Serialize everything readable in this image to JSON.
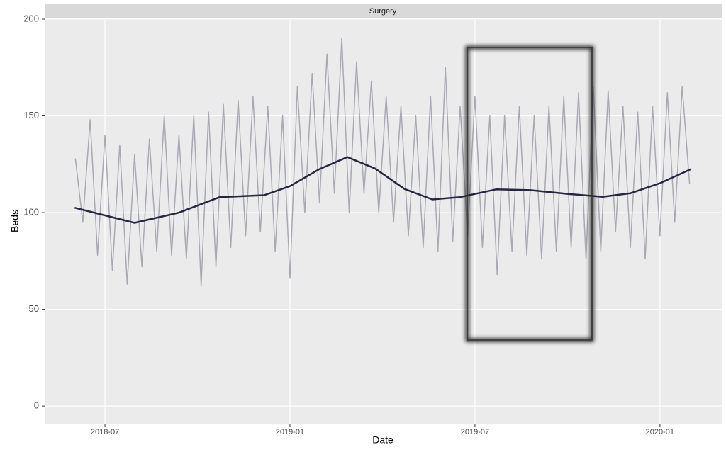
{
  "chart_data": {
    "type": "line",
    "panel_title": "Surgery",
    "x_label": "Date",
    "y_label": "Beds",
    "x": [
      2018.42,
      2018.44,
      2018.46,
      2018.48,
      2018.5,
      2018.52,
      2018.54,
      2018.56,
      2018.58,
      2018.6,
      2018.62,
      2018.64,
      2018.66,
      2018.68,
      2018.7,
      2018.72,
      2018.74,
      2018.76,
      2018.78,
      2018.8,
      2018.82,
      2018.84,
      2018.86,
      2018.88,
      2018.9,
      2018.92,
      2018.94,
      2018.96,
      2018.98,
      2019.0,
      2019.02,
      2019.04,
      2019.06,
      2019.08,
      2019.1,
      2019.12,
      2019.14,
      2019.16,
      2019.18,
      2019.2,
      2019.22,
      2019.24,
      2019.26,
      2019.28,
      2019.3,
      2019.32,
      2019.34,
      2019.36,
      2019.38,
      2019.4,
      2019.42,
      2019.44,
      2019.46,
      2019.48,
      2019.5,
      2019.52,
      2019.54,
      2019.56,
      2019.58,
      2019.6,
      2019.62,
      2019.64,
      2019.66,
      2019.68,
      2019.7,
      2019.72,
      2019.74,
      2019.76,
      2019.78,
      2019.8,
      2019.82,
      2019.84,
      2019.86,
      2019.88,
      2019.9,
      2019.92,
      2019.94,
      2019.96,
      2019.98,
      2020.0,
      2020.02,
      2020.04,
      2020.06,
      2020.08
    ],
    "series": [
      {
        "color": "#aaa8b4",
        "width": 1.5,
        "values": [
          128,
          95,
          148,
          78,
          140,
          70,
          135,
          63,
          130,
          72,
          138,
          80,
          150,
          78,
          140,
          76,
          150,
          62,
          152,
          72,
          156,
          82,
          158,
          88,
          160,
          90,
          155,
          80,
          150,
          66,
          165,
          100,
          172,
          105,
          182,
          110,
          190,
          100,
          178,
          110,
          168,
          100,
          160,
          95,
          155,
          88,
          150,
          82,
          160,
          80,
          175,
          85,
          155,
          88,
          160,
          82,
          150,
          68,
          150,
          80,
          155,
          78,
          150,
          76,
          155,
          80,
          160,
          82,
          162,
          76,
          165,
          80,
          163,
          90,
          155,
          82,
          152,
          76,
          155,
          88,
          162,
          95,
          165,
          115
        ]
      },
      {
        "color": "#262640",
        "width": 2.5,
        "x": [
          2018.418,
          2018.58,
          2018.7,
          2018.81,
          2018.93,
          2019.0,
          2019.08,
          2019.155,
          2019.23,
          2019.31,
          2019.385,
          2019.46,
          2019.557,
          2019.65,
          2019.75,
          2019.845,
          2019.92,
          2020.0,
          2020.084
        ],
        "values": [
          102.5,
          94.7,
          100,
          108,
          109,
          113.7,
          122.5,
          128.7,
          122.8,
          112.2,
          106.8,
          108,
          112,
          111.6,
          109.7,
          108.2,
          110,
          115.2,
          122.5
        ]
      }
    ],
    "xlim": [
      2018.337,
      2020.167
    ],
    "xticks": [
      {
        "value": 2018.5,
        "label": "2018-07"
      },
      {
        "value": 2019.0,
        "label": "2019-01"
      },
      {
        "value": 2019.5,
        "label": "2019-07"
      },
      {
        "value": 2020.0,
        "label": "2020-01"
      }
    ],
    "ylim": [
      -9.1,
      200
    ],
    "yticks": [
      0,
      50,
      100,
      150,
      200
    ],
    "grid": true
  }
}
